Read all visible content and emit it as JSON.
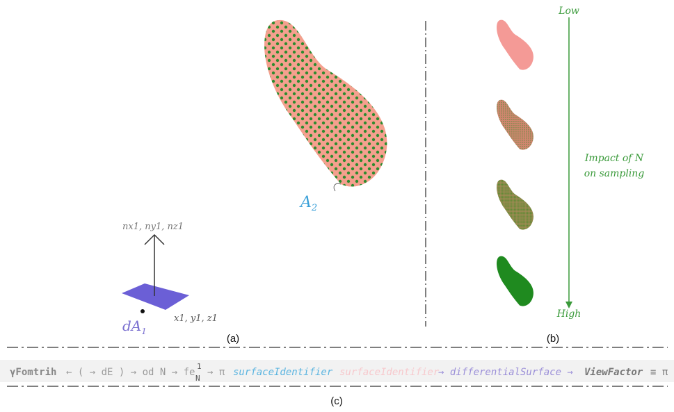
{
  "panel_a": {
    "label": "(a)",
    "surface_label": "A",
    "surface_subscript": "2",
    "element_label": "dA",
    "element_subscript": "1",
    "normal_label": "nx1, ny1, nz1",
    "position_label": "x1, y1, z1"
  },
  "panel_b": {
    "label": "(b)",
    "axis_top": "Low",
    "axis_bottom": "High",
    "axis_caption": [
      "Impact of N",
      "on sampling"
    ]
  },
  "panel_c": {
    "label": "(c)",
    "code": [
      "γFomtrih",
      "← ( → dE ) → od N → fe",
      "1",
      "N",
      "→ π",
      "surfaceIdentifier",
      "surfaceIdentifier",
      "→ differentialSurface →",
      "ViewFactor",
      "≡ π"
    ]
  }
}
